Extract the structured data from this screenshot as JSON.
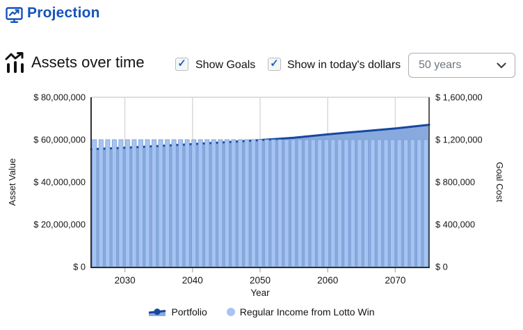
{
  "header": {
    "title": "Projection"
  },
  "toolbar": {
    "title": "Assets over time",
    "checkboxes": [
      {
        "label": "Show Goals",
        "checked": true
      },
      {
        "label": "Show in today's dollars",
        "checked": true
      }
    ],
    "range_select": {
      "value": "50 years"
    }
  },
  "colors": {
    "brand_blue": "#1553bb",
    "portfolio_line": "#17479e",
    "portfolio_fill": "#87a9de",
    "bar_fill": "#a6c4f2",
    "bar_border": "#7d9fd4",
    "gridline": "#d7d7d7",
    "axis": "#2f2f2f"
  },
  "chart_data": {
    "type": "area",
    "title": "Assets over time",
    "x_axis": {
      "label": "Year",
      "range": [
        2025,
        2075
      ],
      "ticks": [
        "2030",
        "2040",
        "2050",
        "2060",
        "2070"
      ]
    },
    "left_axis": {
      "label": "Asset Value",
      "range": [
        0,
        80000000
      ],
      "ticks": [
        "$ 0",
        "$ 20,000,000",
        "$ 40,000,000",
        "$ 60,000,000",
        "$ 80,000,000"
      ]
    },
    "right_axis": {
      "label": "Goal Cost",
      "range": [
        0,
        1600000
      ],
      "ticks": [
        "$ 0",
        "$ 400,000",
        "$ 800,000",
        "$ 1,200,000",
        "$ 1,600,000"
      ]
    },
    "series": [
      {
        "name": "Portfolio",
        "type": "area",
        "axis": "left",
        "x": [
          2025,
          2030,
          2035,
          2040,
          2045,
          2050,
          2055,
          2060,
          2065,
          2070,
          2075
        ],
        "y": [
          55500000,
          56200000,
          57000000,
          57900000,
          58800000,
          59800000,
          60900000,
          62500000,
          63900000,
          65300000,
          67000000
        ]
      },
      {
        "name": "Regular Income from Lotto Win",
        "type": "bar",
        "axis": "right",
        "year_start": 2025,
        "year_end": 2075,
        "annual_value": 1200000
      }
    ],
    "legend": [
      {
        "label": "Portfolio"
      },
      {
        "label": "Regular Income from Lotto Win"
      }
    ],
    "grid": "vertical-only",
    "legend_position": "bottom"
  }
}
